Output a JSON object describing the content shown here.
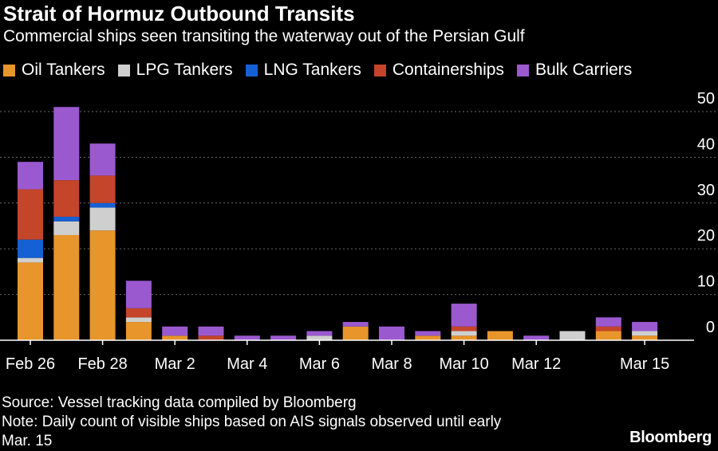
{
  "chart_data": {
    "type": "bar",
    "stacked": true,
    "title": "Strait of Hormuz Outbound Transits",
    "subtitle": "Commercial ships seen transiting the waterway out of the Persian Gulf",
    "categories": [
      "Feb 26",
      "Feb 27",
      "Feb 28",
      "Mar 1",
      "Mar 2",
      "Mar 3",
      "Mar 4",
      "Mar 5",
      "Mar 6",
      "Mar 7",
      "Mar 8",
      "Mar 9",
      "Mar 10",
      "Mar 11",
      "Mar 12",
      "Mar 13",
      "Mar 14",
      "Mar 15"
    ],
    "x_tick_labels": [
      "Feb 26",
      "Feb 28",
      "Mar 2",
      "Mar 4",
      "Mar 6",
      "Mar 8",
      "Mar 10",
      "Mar 12",
      "Mar 15"
    ],
    "series": [
      {
        "name": "Oil Tankers",
        "color": "#e8952b",
        "values": [
          17,
          23,
          24,
          4,
          1,
          0,
          0,
          0,
          0,
          3,
          0,
          1,
          1,
          2,
          0,
          0,
          2,
          1
        ]
      },
      {
        "name": "LPG Tankers",
        "color": "#cfcfcf",
        "values": [
          1,
          3,
          5,
          1,
          0,
          0,
          0,
          0,
          1,
          0,
          0,
          0,
          1,
          0,
          0,
          2,
          0,
          1
        ]
      },
      {
        "name": "LNG Tankers",
        "color": "#1560d4",
        "values": [
          4,
          1,
          1,
          0,
          0,
          0,
          0,
          0,
          0,
          0,
          0,
          0,
          0,
          0,
          0,
          0,
          0,
          0
        ]
      },
      {
        "name": "Containerships",
        "color": "#c4452a",
        "values": [
          11,
          8,
          6,
          2,
          0,
          1,
          0,
          0,
          0,
          0,
          0,
          0,
          1,
          0,
          0,
          0,
          1,
          0
        ]
      },
      {
        "name": "Bulk Carriers",
        "color": "#9b59d0",
        "values": [
          6,
          16,
          7,
          6,
          2,
          2,
          1,
          1,
          1,
          1,
          3,
          1,
          5,
          0,
          1,
          0,
          2,
          2
        ]
      }
    ],
    "ylim": [
      0,
      50
    ],
    "yticks": [
      0,
      10,
      20,
      30,
      40,
      50
    ],
    "xlabel": "",
    "ylabel": "",
    "grid": true,
    "legend_position": "top-left"
  },
  "footer": {
    "source": "Source: Vessel tracking data compiled by Bloomberg",
    "note_line1": "Note: Daily count of visible ships based on AIS signals observed until early",
    "note_line2": "Mar. 15",
    "brand": "Bloomberg"
  }
}
